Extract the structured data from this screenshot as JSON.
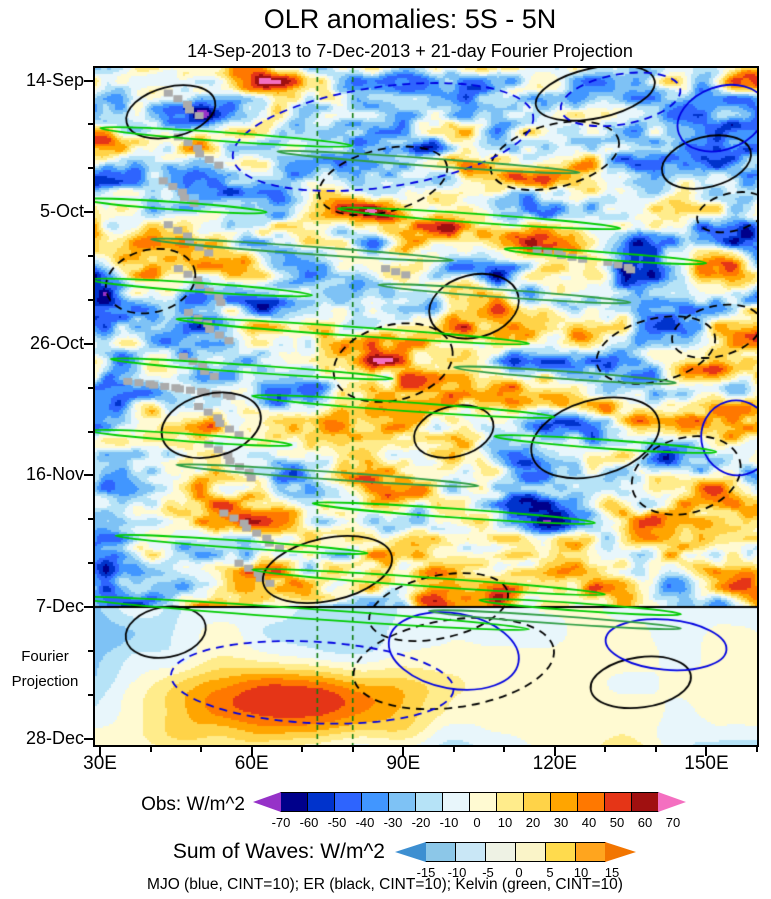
{
  "chart_data": {
    "type": "heatmap",
    "title": "OLR anomalies: 5S - 5N",
    "subtitle": "14-Sep-2013 to 7-Dec-2013 + 21-day Fourier Projection",
    "footnote": "MJO (blue, CINT=10); ER (black, CINT=10); Kelvin (green, CINT=10)",
    "x_axis": {
      "tick_labels": [
        "30E",
        "60E",
        "90E",
        "120E",
        "150E"
      ],
      "tick_values": [
        30,
        60,
        90,
        120,
        150
      ],
      "minor_interval_deg": 10,
      "range": [
        29,
        160
      ]
    },
    "y_axis": {
      "tick_labels": [
        "14-Sep",
        "5-Oct",
        "26-Oct",
        "16-Nov",
        "7-Dec",
        "28-Dec"
      ],
      "tick_days": [
        0,
        21,
        42,
        63,
        84,
        105
      ],
      "minor_interval_days": 7,
      "range_days": [
        -2,
        106
      ],
      "direction": "time-increases-downward",
      "projection_label_lines": [
        "Fourier",
        "Projection"
      ]
    },
    "colorbars": {
      "obs": {
        "label": "Obs: W/m^2",
        "levels": [
          -70,
          -60,
          -50,
          -40,
          -30,
          -20,
          -10,
          0,
          10,
          20,
          30,
          40,
          50,
          60,
          70
        ],
        "colors": [
          "#9632C8",
          "#00008B",
          "#0033CC",
          "#2E64FE",
          "#4196FF",
          "#7EC2F5",
          "#B6E3F7",
          "#E8F6FB",
          "#FFFAD2",
          "#FFEC8B",
          "#FFD348",
          "#FFA500",
          "#FF7800",
          "#E53517",
          "#A01010",
          "#F46FC0"
        ]
      },
      "waves": {
        "label": "Sum of Waves: W/m^2",
        "levels": [
          -15,
          -10,
          -5,
          0,
          5,
          10,
          15
        ],
        "colors": [
          "#3D8FD1",
          "#8CC7E8",
          "#C9E7F6",
          "#EEF2E4",
          "#FAF4C8",
          "#FFDB4D",
          "#FFA51E",
          "#F27500"
        ]
      }
    },
    "overlays": {
      "divider_day": 84,
      "divider_date": "7-Dec",
      "reference_lons": [
        73,
        80
      ],
      "reference_line_color": "#0E7A0E",
      "missing_data_color": "#ABABAB",
      "legend": [
        {
          "name": "MJO",
          "color": "#0000E0",
          "cint": 10
        },
        {
          "name": "ER",
          "color": "#000000",
          "cint": 10
        },
        {
          "name": "Kelvin",
          "color": "#00CC00",
          "cint": 10
        }
      ],
      "ellipse_format": [
        "lon_center_degE",
        "day_center",
        "rx_deg",
        "ry_days",
        "tilt_deg_screen",
        "dashed"
      ],
      "er_ellipses": [
        [
          44,
          5,
          9,
          4,
          -14,
          false
        ],
        [
          128,
          2,
          12,
          4,
          -12,
          false
        ],
        [
          150,
          13,
          9,
          4,
          -14,
          false
        ],
        [
          155,
          21,
          7,
          3,
          -14,
          true
        ],
        [
          86,
          16,
          13,
          5,
          -14,
          true
        ],
        [
          120,
          12,
          13,
          5,
          -14,
          true
        ],
        [
          40,
          32,
          9,
          5,
          -14,
          true
        ],
        [
          104,
          36,
          9,
          5,
          -14,
          false
        ],
        [
          88,
          45,
          12,
          6,
          -14,
          true
        ],
        [
          140,
          43,
          12,
          5,
          -14,
          true
        ],
        [
          152,
          40,
          9,
          4,
          -14,
          true
        ],
        [
          52,
          55,
          10,
          5,
          -14,
          false
        ],
        [
          100,
          56,
          8,
          4,
          -14,
          false
        ],
        [
          128,
          57,
          13,
          6,
          -16,
          false
        ],
        [
          146,
          63,
          11,
          6,
          -16,
          true
        ],
        [
          75,
          78,
          13,
          5,
          -12,
          false
        ],
        [
          97,
          84,
          14,
          5,
          -12,
          true
        ],
        [
          100,
          93,
          20,
          7,
          -8,
          true
        ],
        [
          137,
          96,
          10,
          4,
          -8,
          false
        ],
        [
          43,
          88,
          8,
          4,
          -10,
          false
        ]
      ],
      "mjo_ellipses": [
        [
          86,
          9,
          30,
          8,
          -8,
          true
        ],
        [
          133,
          3,
          12,
          4,
          -10,
          true
        ],
        [
          153,
          6,
          9,
          5,
          -20,
          false
        ],
        [
          156,
          57,
          7,
          6,
          -15,
          false
        ],
        [
          100,
          91,
          13,
          6,
          10,
          false
        ],
        [
          142,
          90,
          12,
          4,
          5,
          false
        ],
        [
          72,
          96,
          28,
          6.5,
          3,
          true
        ]
      ],
      "kelvin_format": [
        "lon_center_degE",
        "day_center",
        "half_length_deg",
        "half_width_days",
        "bright"
      ],
      "kelvin_streaks": [
        [
          55,
          9,
          25,
          0.7,
          true
        ],
        [
          95,
          13,
          30,
          0.6,
          false
        ],
        [
          45,
          20,
          18,
          0.6,
          true
        ],
        [
          105,
          22,
          28,
          0.7,
          true
        ],
        [
          70,
          27,
          30,
          0.6,
          false
        ],
        [
          130,
          28,
          20,
          0.6,
          true
        ],
        [
          50,
          33,
          22,
          0.7,
          true
        ],
        [
          110,
          34,
          25,
          0.6,
          false
        ],
        [
          80,
          40,
          35,
          0.7,
          true
        ],
        [
          60,
          46,
          28,
          0.6,
          true
        ],
        [
          122,
          47,
          22,
          0.6,
          false
        ],
        [
          90,
          52,
          30,
          0.7,
          true
        ],
        [
          48,
          57,
          20,
          0.6,
          true
        ],
        [
          130,
          58,
          22,
          0.7,
          true
        ],
        [
          75,
          63,
          30,
          0.6,
          false
        ],
        [
          100,
          69,
          28,
          0.7,
          true
        ],
        [
          58,
          74,
          25,
          0.6,
          true
        ],
        [
          95,
          80,
          35,
          0.7,
          true
        ],
        [
          70,
          85,
          45,
          0.8,
          true
        ],
        [
          125,
          84,
          20,
          0.6,
          true
        ],
        [
          120,
          86,
          25,
          0.6,
          false
        ]
      ],
      "missing_cluster_format": [
        "start_lon_degE",
        "start_day",
        "count",
        "dlon_per_block",
        "dday_per_block"
      ],
      "missing_clusters": [
        [
          44,
          2,
          5,
          1.4,
          0.9
        ],
        [
          46,
          9,
          6,
          1.4,
          0.9
        ],
        [
          43,
          16,
          5,
          1.4,
          0.9
        ],
        [
          44,
          23,
          6,
          1.4,
          0.9
        ],
        [
          46,
          30,
          7,
          1.4,
          0.9
        ],
        [
          48,
          37,
          6,
          1.4,
          0.9
        ],
        [
          47,
          44,
          5,
          1.4,
          0.8
        ],
        [
          36,
          48,
          13,
          1.7,
          0.2
        ],
        [
          50,
          52,
          6,
          1.4,
          0.9
        ],
        [
          52,
          58,
          7,
          1.4,
          0.9
        ],
        [
          55,
          69,
          8,
          1.5,
          0.8
        ],
        [
          58,
          77,
          5,
          1.4,
          0.8
        ],
        [
          117,
          27,
          6,
          1.6,
          0.3
        ],
        [
          131,
          29,
          4,
          1.5,
          0.4
        ],
        [
          87,
          30,
          3,
          1.5,
          0.5
        ]
      ]
    },
    "field": {
      "units": "W/m^2",
      "contour_fill_interval": 10,
      "amplitude_range": [
        -80,
        80
      ]
    }
  }
}
